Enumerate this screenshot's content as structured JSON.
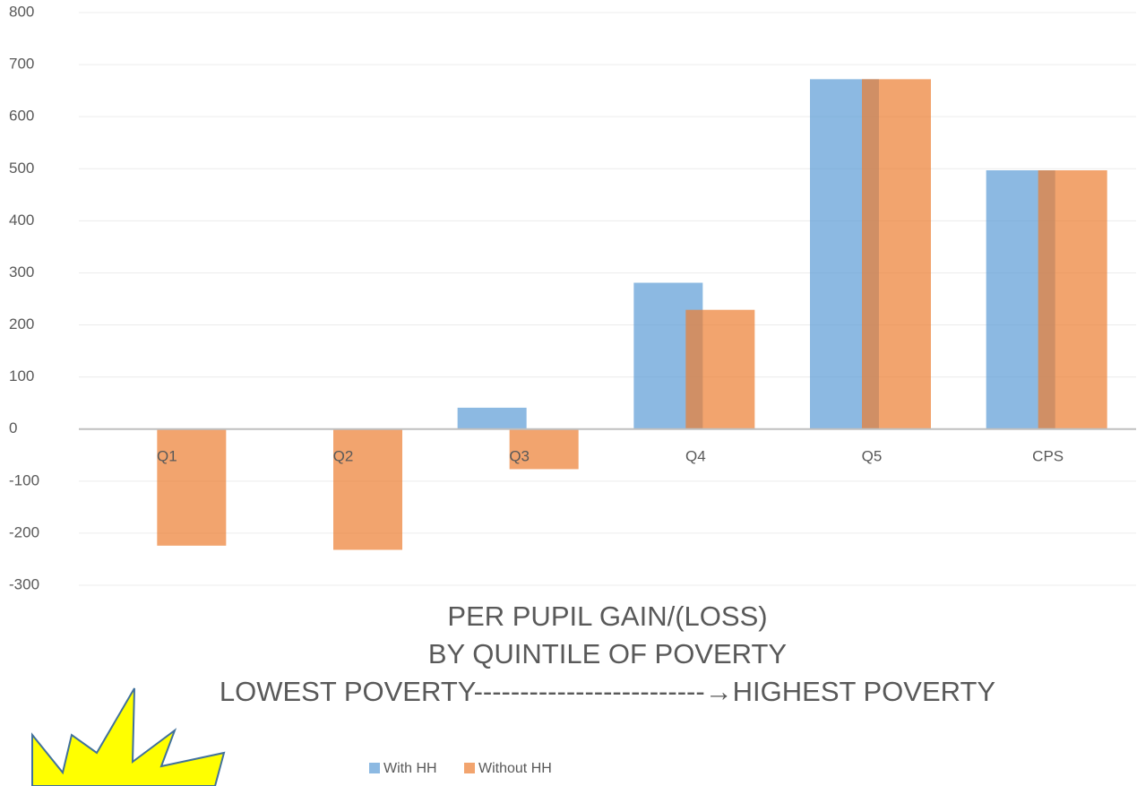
{
  "chart_data": {
    "type": "bar",
    "title_lines": [
      "PER PUPIL GAIN/(LOSS)",
      "BY QUINTILE OF POVERTY",
      "LOWEST POVERTY-------------------------→HIGHEST POVERTY"
    ],
    "categories": [
      "Q1",
      "Q2",
      "Q3",
      "Q4",
      "Q5",
      "CPS"
    ],
    "series": [
      {
        "name": "With HH",
        "color": "#5b9bd5",
        "values": [
          0,
          0,
          41,
          281,
          672,
          497
        ]
      },
      {
        "name": "Without HH",
        "color": "#ed7d31",
        "values": [
          -224,
          -232,
          -77,
          229,
          672,
          497
        ]
      }
    ],
    "ylim": [
      -300,
      800
    ],
    "yticks": [
      -300,
      -200,
      -100,
      0,
      100,
      200,
      300,
      400,
      500,
      600,
      700,
      800
    ],
    "grid": true,
    "legend": "bottom"
  }
}
